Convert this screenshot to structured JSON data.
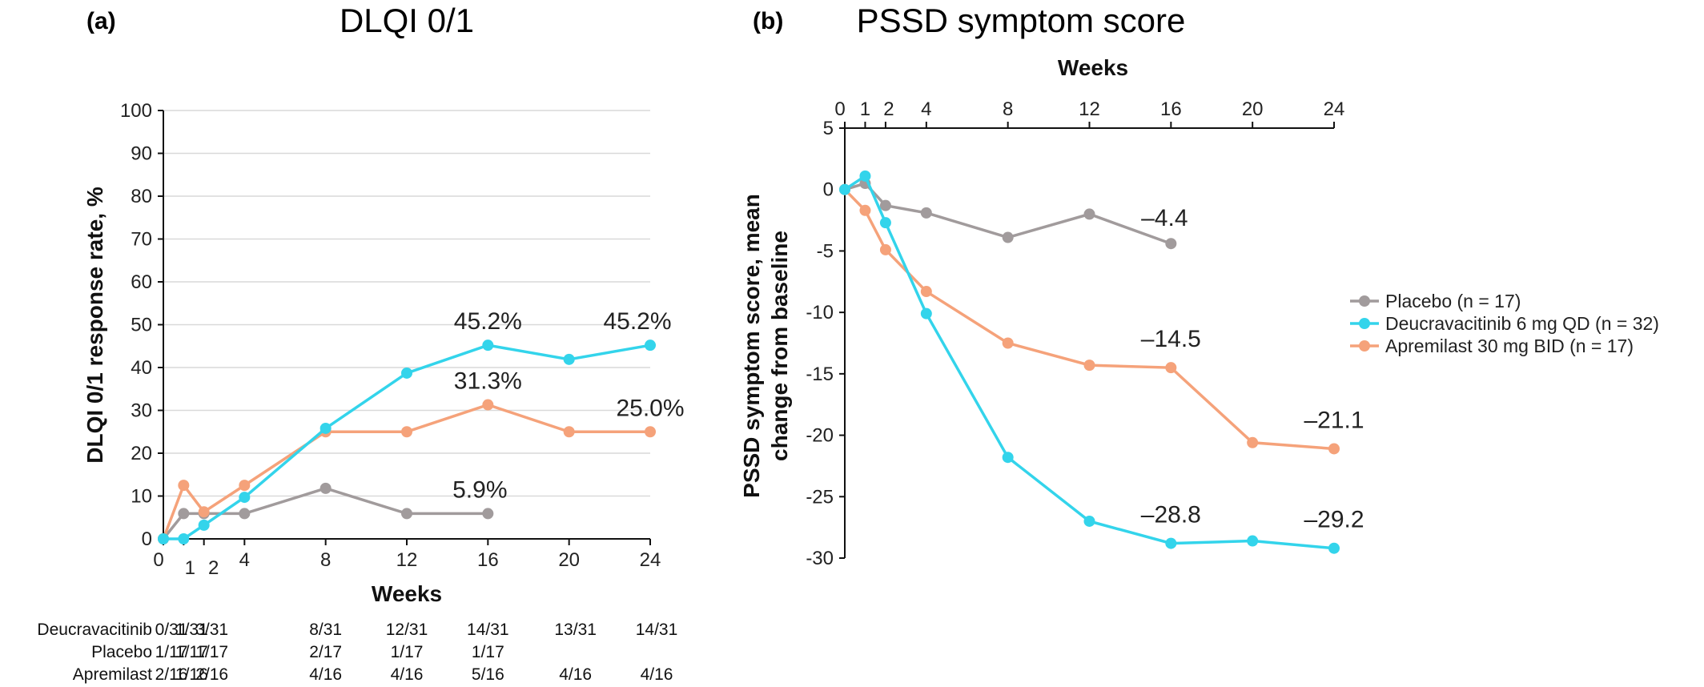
{
  "colors": {
    "placebo": "#a19b9c",
    "deucravacitinib": "#33d4eb",
    "apremilast": "#f5a27a",
    "grid": "#d9d9d9",
    "axis": "#111111"
  },
  "chart_data": [
    {
      "id": "a",
      "panel_label": "(a)",
      "type": "line",
      "title": "DLQI 0/1",
      "xlabel": "Weeks",
      "ylabel": "DLQI 0/1 response rate, %",
      "xlim": [
        0,
        24
      ],
      "ylim": [
        0,
        100
      ],
      "x_ticks": [
        0,
        1,
        2,
        4,
        8,
        12,
        16,
        20,
        24
      ],
      "y_ticks": [
        0,
        10,
        20,
        30,
        40,
        50,
        60,
        70,
        80,
        90,
        100
      ],
      "grid": true,
      "series": [
        {
          "name": "Deucravacitinib",
          "color_key": "deucravacitinib",
          "x": [
            0,
            1,
            2,
            4,
            8,
            12,
            16,
            20,
            24
          ],
          "y": [
            0,
            0,
            3.2,
            9.7,
            25.8,
            38.7,
            45.2,
            41.9,
            45.2
          ]
        },
        {
          "name": "Placebo",
          "color_key": "placebo",
          "x": [
            0,
            1,
            2,
            4,
            8,
            12,
            16
          ],
          "y": [
            0,
            5.9,
            5.9,
            5.9,
            11.8,
            5.9,
            5.9
          ]
        },
        {
          "name": "Apremilast",
          "color_key": "apremilast",
          "x": [
            0,
            1,
            2,
            4,
            8,
            12,
            16,
            20,
            24
          ],
          "y": [
            0,
            12.5,
            6.3,
            12.5,
            25.0,
            25.0,
            31.3,
            25.0,
            25.0
          ]
        }
      ],
      "annotations": [
        {
          "text": "45.2%",
          "x": 16,
          "y": 45.2
        },
        {
          "text": "45.2%",
          "x": 24,
          "y": 45.2
        },
        {
          "text": "31.3%",
          "x": 16,
          "y": 31.3
        },
        {
          "text": "25.0%",
          "x": 24,
          "y": 25.0
        },
        {
          "text": "5.9%",
          "x": 16,
          "y": 5.9
        }
      ],
      "table": {
        "rows": [
          {
            "label": "Deucravacitinib",
            "cells": [
              "0/31",
              "1/31",
              "3/31",
              "8/31",
              "12/31",
              "14/31",
              "13/31",
              "14/31"
            ]
          },
          {
            "label": "Placebo",
            "cells": [
              "1/17",
              "1/17",
              "1/17",
              "2/17",
              "1/17",
              "1/17",
              "",
              ""
            ]
          },
          {
            "label": "Apremilast",
            "cells": [
              "2/16",
              "1/16",
              "2/16",
              "4/16",
              "4/16",
              "5/16",
              "4/16",
              "4/16"
            ]
          }
        ]
      }
    },
    {
      "id": "b",
      "panel_label": "(b)",
      "type": "line",
      "title": "PSSD symptom score",
      "xlabel": "Weeks",
      "ylabel_lines": [
        "PSSD symptom score, mean",
        "change from baseline"
      ],
      "xlim": [
        0,
        24
      ],
      "ylim": [
        -30,
        5
      ],
      "x_ticks": [
        0,
        1,
        2,
        4,
        8,
        12,
        16,
        20,
        24
      ],
      "y_ticks": [
        5,
        0,
        -5,
        -10,
        -15,
        -20,
        -25,
        -30
      ],
      "y_tick_labels": [
        "5",
        "0",
        "-5",
        "-10",
        "-15",
        "-20",
        "-25",
        "-30"
      ],
      "x_axis_position": "top",
      "grid": false,
      "legend_position": "right",
      "series": [
        {
          "name": "Placebo (n = 17)",
          "color_key": "placebo",
          "x": [
            0,
            1,
            2,
            4,
            8,
            12,
            16
          ],
          "y": [
            0,
            0.5,
            -1.3,
            -1.9,
            -3.9,
            -2.0,
            -4.4
          ]
        },
        {
          "name": "Deucravacitinib 6 mg QD (n = 32)",
          "color_key": "deucravacitinib",
          "x": [
            0,
            1,
            2,
            4,
            8,
            12,
            16,
            20,
            24
          ],
          "y": [
            0,
            1.1,
            -2.7,
            -10.1,
            -21.8,
            -27.0,
            -28.8,
            -28.6,
            -29.2
          ]
        },
        {
          "name": "Apremilast 30 mg BID (n = 17)",
          "color_key": "apremilast",
          "x": [
            0,
            1,
            2,
            4,
            8,
            12,
            16,
            20,
            24
          ],
          "y": [
            0,
            -1.7,
            -4.9,
            -8.3,
            -12.5,
            -14.3,
            -14.5,
            -20.6,
            -21.1
          ]
        }
      ],
      "annotations": [
        {
          "text": "–4.4",
          "x": 16,
          "y": -4.4
        },
        {
          "text": "–14.5",
          "x": 16,
          "y": -14.5
        },
        {
          "text": "–21.1",
          "x": 24,
          "y": -21.1
        },
        {
          "text": "–28.8",
          "x": 16,
          "y": -28.8
        },
        {
          "text": "–29.2",
          "x": 24,
          "y": -29.2
        }
      ]
    }
  ]
}
